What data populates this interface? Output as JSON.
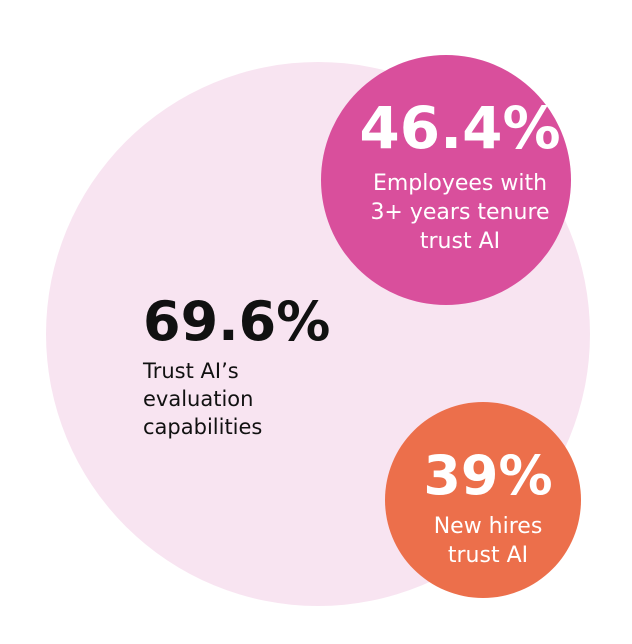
{
  "bubbles": [
    {
      "value": "69.6%",
      "lines": [
        "Trust AI’s",
        "evaluation",
        "capabilities"
      ]
    },
    {
      "value": "46.4%",
      "lines": [
        "Employees with",
        "3+ years tenure",
        "trust AI"
      ]
    },
    {
      "value": "39%",
      "lines": [
        "New hires",
        "trust AI"
      ]
    }
  ]
}
